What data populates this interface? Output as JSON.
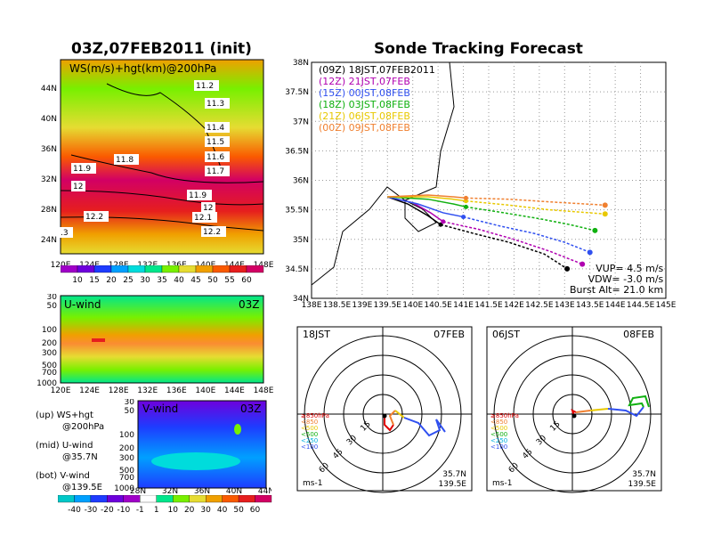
{
  "titles": {
    "left": "03Z,07FEB2011 (init)",
    "right": "Sonde Tracking Forecast"
  },
  "ws_panel": {
    "label": "WS(m/s)+hgt(km)@200hPa",
    "contours": [
      "11.2",
      "11.3",
      "11.4",
      "11.5",
      "11.6",
      "11.7",
      "11.8",
      "11.9",
      "12",
      "11.9",
      "12",
      "12.1",
      "12.2",
      "12.2",
      ".3"
    ],
    "lat_ticks": [
      "44N",
      "40N",
      "36N",
      "32N",
      "28N",
      "24N"
    ],
    "lon_ticks": [
      "120E",
      "124E",
      "128E",
      "132E",
      "136E",
      "140E",
      "144E",
      "148E"
    ],
    "colorbar_ticks": [
      "10",
      "15",
      "20",
      "25",
      "30",
      "35",
      "40",
      "45",
      "50",
      "55",
      "60"
    ],
    "colorbar_colors": [
      "#a000c8",
      "#6e00dc",
      "#1e3cff",
      "#00a0ff",
      "#00dcdc",
      "#00e68c",
      "#78f000",
      "#e6dc32",
      "#f0a000",
      "#fa5a00",
      "#e61e1e",
      "#d20064"
    ]
  },
  "u_panel": {
    "label": "U-wind",
    "time": "03Z",
    "p_ticks": [
      "30",
      "50",
      "100",
      "200",
      "300",
      "500",
      "700",
      "1000"
    ],
    "lon_ticks": [
      "120E",
      "124E",
      "128E",
      "132E",
      "136E",
      "140E",
      "144E",
      "148E"
    ]
  },
  "v_panel": {
    "label": "V-wind",
    "time": "03Z",
    "p_ticks": [
      "30",
      "50",
      "100",
      "200",
      "300",
      "500",
      "700",
      "1000"
    ],
    "lat_ticks": [
      "28N",
      "32N",
      "36N",
      "40N",
      "44N"
    ],
    "colorbar_ticks": [
      "-40",
      "-30",
      "-20",
      "-10",
      "-1",
      "1",
      "10",
      "20",
      "30",
      "40",
      "50",
      "60"
    ],
    "colorbar_colors": [
      "#00c8c8",
      "#00a0ff",
      "#1e3cff",
      "#6e00dc",
      "#a000c8",
      "#ffffff",
      "#00e68c",
      "#78f000",
      "#e6dc32",
      "#f0a000",
      "#fa5a00",
      "#e61e1e",
      "#d20064"
    ]
  },
  "notes": [
    {
      "a": "(up) WS+hgt",
      "b": "@200hPa"
    },
    {
      "a": "(mid) U-wind",
      "b": "@35.7N"
    },
    {
      "a": "(bot) V-wind",
      "b": "@139.5E"
    }
  ],
  "track_panel": {
    "lat_ticks": [
      "38N",
      "37.5N",
      "37N",
      "36.5N",
      "36N",
      "35.5N",
      "35N",
      "34.5N",
      "34N"
    ],
    "lon_ticks": [
      "138E",
      "138.5E",
      "139E",
      "139.5E",
      "140E",
      "140.5E",
      "141E",
      "141.5E",
      "142E",
      "142.5E",
      "143E",
      "143.5E",
      "144E",
      "144.5E",
      "145E"
    ],
    "legend": [
      {
        "t": "(09Z)",
        "s": "18JST,07FEB2011",
        "color": "#000000"
      },
      {
        "t": "(12Z)",
        "s": "21JST,07FEB",
        "color": "#b000b0"
      },
      {
        "t": "(15Z)",
        "s": "00JST,08FEB",
        "color": "#3050f0"
      },
      {
        "t": "(18Z)",
        "s": "03JST,08FEB",
        "color": "#10b010"
      },
      {
        "t": "(21Z)",
        "s": "06JST,08FEB",
        "color": "#e8c800"
      },
      {
        "t": "(00Z)",
        "s": "09JST,08FEB",
        "color": "#f08030"
      }
    ],
    "params": [
      "VUP= 4.5 m/s",
      "VDW= -3.0 m/s",
      "Burst Alt= 21.0 km"
    ]
  },
  "hodo_left": {
    "time": "18JST",
    "date": "07FEB",
    "rings": [
      "15",
      "30",
      "45",
      "60"
    ],
    "levels": [
      {
        "t": "≥850hPa",
        "color": "#e00000"
      },
      {
        "t": "<850",
        "color": "#f08030"
      },
      {
        "t": "<500",
        "color": "#e8c800"
      },
      {
        "t": "<500",
        "color": "#10b010"
      },
      {
        "t": "<250",
        "color": "#00b0e0"
      },
      {
        "t": "<100",
        "color": "#3050f0"
      }
    ],
    "units": "ms-1",
    "loc1": "35.7N",
    "loc2": "139.5E"
  },
  "hodo_right": {
    "time": "06JST",
    "date": "08FEB",
    "rings": [
      "15",
      "30",
      "45",
      "60"
    ],
    "levels": [
      {
        "t": "≥850hPa",
        "color": "#e00000"
      },
      {
        "t": "<850",
        "color": "#f08030"
      },
      {
        "t": "<500",
        "color": "#e8c800"
      },
      {
        "t": "<500",
        "color": "#10b010"
      },
      {
        "t": "<250",
        "color": "#00b0e0"
      },
      {
        "t": "<100",
        "color": "#3050f0"
      }
    ],
    "units": "ms-1",
    "loc1": "35.7N",
    "loc2": "139.5E"
  },
  "chart_data": {
    "type": "line",
    "title": "Sonde Tracking Forecast",
    "xlim": [
      138,
      145
    ],
    "ylim": [
      34,
      38
    ],
    "launch": {
      "lon": 139.5,
      "lat": 35.72
    },
    "series": [
      {
        "name": "(09Z) 18JST,07FEB2011",
        "color": "#000000",
        "burst": [
          140.55,
          35.25
        ],
        "lon": [
          139.5,
          139.9,
          140.3,
          140.55,
          141.2,
          141.9,
          142.6,
          143.05
        ],
        "lat": [
          35.72,
          35.6,
          35.4,
          35.25,
          35.1,
          34.95,
          34.75,
          34.5
        ]
      },
      {
        "name": "(12Z) 21JST,07FEB",
        "color": "#b000b0",
        "burst": [
          140.6,
          35.3
        ],
        "lon": [
          139.5,
          140.0,
          140.35,
          140.6,
          141.3,
          142.0,
          142.7,
          143.35
        ],
        "lat": [
          35.72,
          35.62,
          35.45,
          35.3,
          35.17,
          35.0,
          34.8,
          34.58
        ]
      },
      {
        "name": "(15Z) 00JST,08FEB",
        "color": "#3050f0",
        "burst": [
          141.0,
          35.38
        ],
        "lon": [
          139.5,
          140.1,
          140.6,
          141.0,
          141.7,
          142.4,
          143.0,
          143.5
        ],
        "lat": [
          35.72,
          35.6,
          35.45,
          35.38,
          35.23,
          35.1,
          34.95,
          34.78
        ]
      },
      {
        "name": "(18Z) 03JST,08FEB",
        "color": "#10b010",
        "burst": [
          141.05,
          35.55
        ],
        "lon": [
          139.5,
          140.3,
          140.8,
          141.05,
          141.8,
          142.5,
          143.1,
          143.6
        ],
        "lat": [
          35.72,
          35.68,
          35.6,
          35.55,
          35.45,
          35.35,
          35.25,
          35.15
        ]
      },
      {
        "name": "(21Z) 06JST,08FEB",
        "color": "#e8c800",
        "burst": [
          141.05,
          35.65
        ],
        "lon": [
          139.5,
          140.3,
          140.8,
          141.05,
          141.9,
          142.7,
          143.8
        ],
        "lat": [
          35.72,
          35.72,
          35.68,
          35.65,
          35.58,
          35.5,
          35.43
        ]
      },
      {
        "name": "(00Z) 09JST,08FEB",
        "color": "#f08030",
        "burst": [
          141.05,
          35.7
        ],
        "lon": [
          139.5,
          140.3,
          140.8,
          141.05,
          141.9,
          142.8,
          143.8
        ],
        "lat": [
          35.72,
          35.75,
          35.72,
          35.7,
          35.68,
          35.63,
          35.58
        ]
      }
    ]
  }
}
